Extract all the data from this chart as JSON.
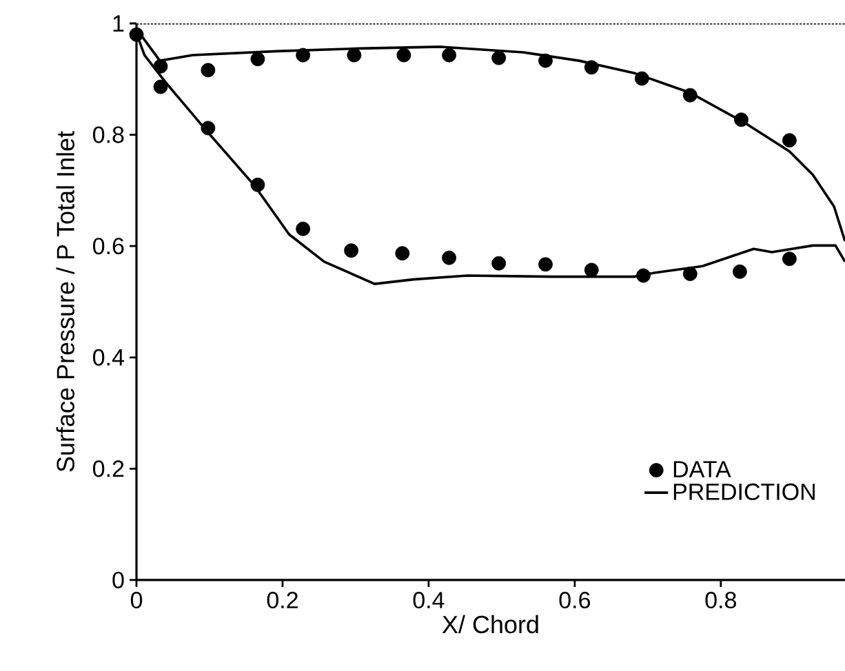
{
  "chart_data": {
    "type": "scatter",
    "xlabel": "X/ Chord",
    "ylabel": "Surface Pressure / P Total Inlet",
    "xlim": [
      0,
      0.97
    ],
    "ylim": [
      0,
      1
    ],
    "xticks": [
      0,
      0.2,
      0.4,
      0.6,
      0.8
    ],
    "yticks": [
      0,
      0.2,
      0.4,
      0.6,
      0.8,
      1
    ],
    "legend": "bottom right",
    "grid": false,
    "ref_lines": [
      {
        "axis": "y",
        "value": 1,
        "line_style": "dotted",
        "color": "#000000"
      }
    ],
    "series": [
      {
        "name": "DATA",
        "marker": "circle",
        "color": "#000000",
        "x": [
          0,
          0.033,
          0.098,
          0.166,
          0.228,
          0.298,
          0.366,
          0.428,
          0.496,
          0.56,
          0.623,
          0.692,
          0.758,
          0.828,
          0.894,
          0.033,
          0.098,
          0.166,
          0.228,
          0.294,
          0.364,
          0.428,
          0.496,
          0.56,
          0.623,
          0.694,
          0.758,
          0.826,
          0.894
        ],
        "values": [
          0.98,
          0.923,
          0.916,
          0.936,
          0.943,
          0.943,
          0.943,
          0.943,
          0.938,
          0.933,
          0.921,
          0.901,
          0.871,
          0.827,
          0.79,
          0.886,
          0.812,
          0.71,
          0.631,
          0.592,
          0.587,
          0.579,
          0.569,
          0.567,
          0.557,
          0.547,
          0.55,
          0.554,
          0.577
        ]
      },
      {
        "name": "PREDICTION",
        "type": "line",
        "marker": "none",
        "color": "#000000",
        "line_style": "solid",
        "x": [
          0.97,
          0.955,
          0.926,
          0.894,
          0.832,
          0.757,
          0.681,
          0.606,
          0.53,
          0.417,
          0.304,
          0.191,
          0.077,
          0.032,
          0,
          0.002,
          0.011,
          0.04,
          0.096,
          0.162,
          0.209,
          0.257,
          0.326,
          0.379,
          0.453,
          0.568,
          0.681,
          0.709,
          0.775,
          0.845,
          0.87,
          0.926,
          0.957,
          0.97
        ],
        "values": [
          0.609,
          0.671,
          0.728,
          0.77,
          0.822,
          0.876,
          0.911,
          0.933,
          0.948,
          0.958,
          0.955,
          0.95,
          0.943,
          0.933,
          0.99,
          0.975,
          0.943,
          0.894,
          0.807,
          0.708,
          0.621,
          0.572,
          0.532,
          0.54,
          0.547,
          0.545,
          0.545,
          0.552,
          0.564,
          0.595,
          0.589,
          0.601,
          0.601,
          0.572
        ]
      }
    ]
  }
}
